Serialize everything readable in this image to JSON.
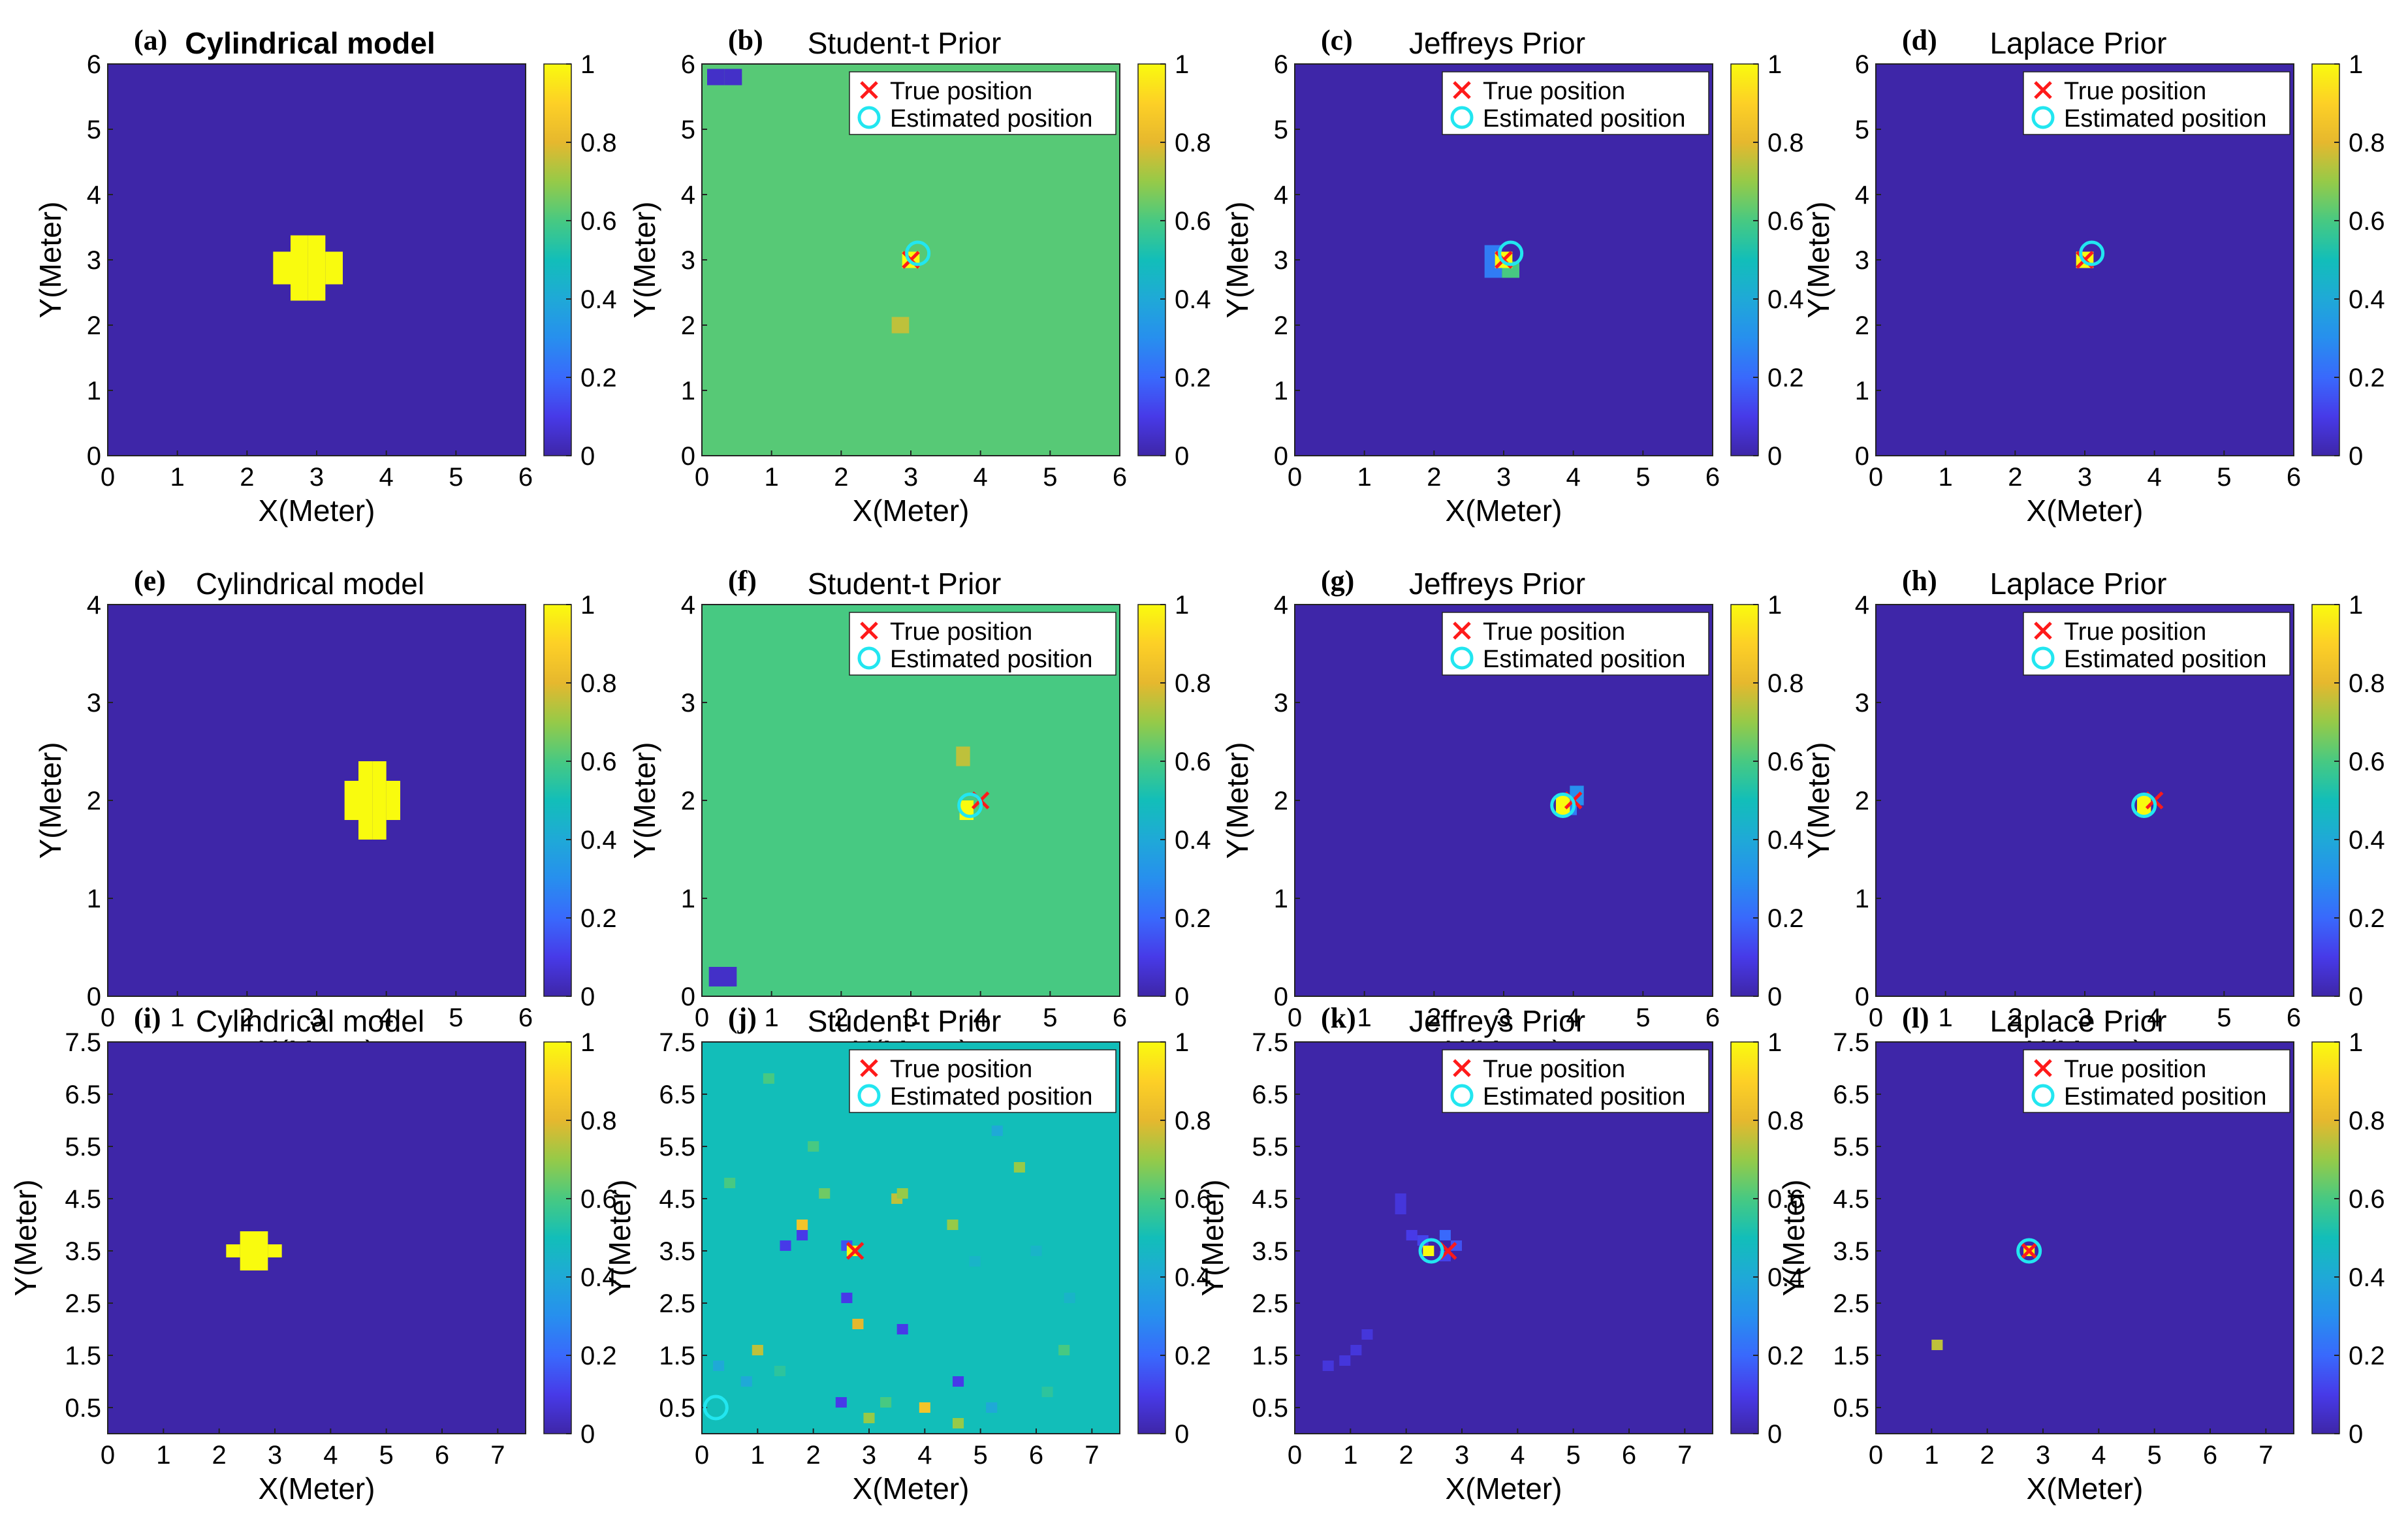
{
  "figure": {
    "axis_labels": {
      "x": "X(Meter)",
      "y": "Y(Meter)"
    },
    "legend_labels": {
      "true": "True position",
      "estimated": "Estimated position"
    },
    "colorbar_ticks": [
      "0",
      "0.2",
      "0.4",
      "0.6",
      "0.8",
      "1"
    ],
    "colors": {
      "background_dark": "#3d2fa3",
      "student_t_bg_b": "#2b85f2",
      "student_t_bg_f": "#2a91e8",
      "student_t_bg_j": "#14b8b0",
      "target_yellow": "#f7f90f",
      "true_marker": "#ff1a1a",
      "estimated_marker": "#22e6f0"
    }
  },
  "chart_data": [
    {
      "id": "a",
      "letter": "(a)",
      "type": "heatmap",
      "title": "Cylindrical model",
      "title_bold": true,
      "xlim": [
        0,
        6
      ],
      "ylim": [
        0,
        6
      ],
      "xticks": [
        "0",
        "1",
        "2",
        "3",
        "4",
        "5",
        "6"
      ],
      "yticks": [
        "0",
        "1",
        "2",
        "3",
        "4",
        "5",
        "6"
      ],
      "background": 0,
      "cells_size": 0.25,
      "cells": [
        [
          2.75,
          2.5,
          1
        ],
        [
          3.0,
          2.5,
          1
        ],
        [
          2.5,
          2.75,
          1
        ],
        [
          2.75,
          2.75,
          1
        ],
        [
          3.0,
          2.75,
          1
        ],
        [
          3.25,
          2.75,
          1
        ],
        [
          2.5,
          3.0,
          1
        ],
        [
          2.75,
          3.0,
          1
        ],
        [
          3.0,
          3.0,
          1
        ],
        [
          3.25,
          3.0,
          1
        ],
        [
          2.75,
          3.25,
          1
        ],
        [
          3.0,
          3.25,
          1
        ]
      ],
      "true_position": null,
      "estimated_position": null,
      "legend": false
    },
    {
      "id": "b",
      "letter": "(b)",
      "type": "heatmap",
      "title": "Student-t Prior",
      "title_bold": false,
      "xlim": [
        0,
        6
      ],
      "ylim": [
        0,
        6
      ],
      "xticks": [
        "0",
        "1",
        "2",
        "3",
        "4",
        "5",
        "6"
      ],
      "yticks": [
        "0",
        "1",
        "2",
        "3",
        "4",
        "5",
        "6"
      ],
      "background": 0.62,
      "cells_size": 0.25,
      "cells": [
        [
          0.2,
          5.8,
          0.05
        ],
        [
          0.45,
          5.8,
          0.05
        ],
        [
          2.85,
          2.0,
          0.75
        ],
        [
          3.0,
          3.0,
          1
        ]
      ],
      "true_position": [
        3.0,
        3.0
      ],
      "estimated_position": [
        3.1,
        3.1
      ],
      "legend": true
    },
    {
      "id": "c",
      "letter": "(c)",
      "type": "heatmap",
      "title": "Jeffreys Prior",
      "title_bold": false,
      "xlim": [
        0,
        6
      ],
      "ylim": [
        0,
        6
      ],
      "xticks": [
        "0",
        "1",
        "2",
        "3",
        "4",
        "5",
        "6"
      ],
      "yticks": [
        "0",
        "1",
        "2",
        "3",
        "4",
        "5",
        "6"
      ],
      "background": 0,
      "cells_size": 0.25,
      "cells": [
        [
          2.85,
          2.85,
          0.25
        ],
        [
          3.1,
          2.85,
          0.6
        ],
        [
          2.85,
          3.1,
          0.25
        ],
        [
          3.0,
          3.0,
          1
        ]
      ],
      "true_position": [
        3.0,
        3.0
      ],
      "estimated_position": [
        3.1,
        3.1
      ],
      "legend": true
    },
    {
      "id": "d",
      "letter": "(d)",
      "type": "heatmap",
      "title": "Laplace Prior",
      "title_bold": false,
      "xlim": [
        0,
        6
      ],
      "ylim": [
        0,
        6
      ],
      "xticks": [
        "0",
        "1",
        "2",
        "3",
        "4",
        "5",
        "6"
      ],
      "yticks": [
        "0",
        "1",
        "2",
        "3",
        "4",
        "5",
        "6"
      ],
      "background": 0,
      "cells_size": 0.25,
      "cells": [
        [
          3.0,
          3.0,
          1
        ]
      ],
      "true_position": [
        3.0,
        3.0
      ],
      "estimated_position": [
        3.1,
        3.1
      ],
      "legend": true
    },
    {
      "id": "e",
      "letter": "(e)",
      "type": "heatmap",
      "title": "Cylindrical model",
      "title_bold": false,
      "xlim": [
        0,
        6
      ],
      "ylim": [
        0,
        4
      ],
      "xticks": [
        "0",
        "1",
        "2",
        "3",
        "4",
        "5",
        "6"
      ],
      "yticks": [
        "0",
        "1",
        "2",
        "3",
        "4"
      ],
      "background": 0,
      "cells_size": 0.2,
      "cells": [
        [
          3.7,
          1.7,
          1
        ],
        [
          3.9,
          1.7,
          1
        ],
        [
          3.5,
          1.9,
          1
        ],
        [
          3.7,
          1.9,
          1
        ],
        [
          3.9,
          1.9,
          1
        ],
        [
          4.1,
          1.9,
          1
        ],
        [
          3.5,
          2.1,
          1
        ],
        [
          3.7,
          2.1,
          1
        ],
        [
          3.9,
          2.1,
          1
        ],
        [
          4.1,
          2.1,
          1
        ],
        [
          3.7,
          2.3,
          1
        ],
        [
          3.9,
          2.3,
          1
        ]
      ],
      "true_position": null,
      "estimated_position": null,
      "legend": false
    },
    {
      "id": "f",
      "letter": "(f)",
      "type": "heatmap",
      "title": "Student-t Prior",
      "title_bold": false,
      "xlim": [
        0,
        6
      ],
      "ylim": [
        0,
        4
      ],
      "xticks": [
        "0",
        "1",
        "2",
        "3",
        "4",
        "5",
        "6"
      ],
      "yticks": [
        "0",
        "1",
        "2",
        "3",
        "4"
      ],
      "background": 0.6,
      "cells_size": 0.2,
      "cells": [
        [
          0.2,
          0.2,
          0.05
        ],
        [
          0.4,
          0.2,
          0.05
        ],
        [
          3.75,
          2.45,
          0.75
        ],
        [
          3.8,
          1.9,
          1
        ]
      ],
      "true_position": [
        4.0,
        2.0
      ],
      "estimated_position": [
        3.85,
        1.95
      ],
      "legend": true
    },
    {
      "id": "g",
      "letter": "(g)",
      "type": "heatmap",
      "title": "Jeffreys Prior",
      "title_bold": false,
      "xlim": [
        0,
        6
      ],
      "ylim": [
        0,
        4
      ],
      "xticks": [
        "0",
        "1",
        "2",
        "3",
        "4",
        "5",
        "6"
      ],
      "yticks": [
        "0",
        "1",
        "2",
        "3",
        "4"
      ],
      "background": 0,
      "cells_size": 0.2,
      "cells": [
        [
          3.95,
          1.95,
          0.25
        ],
        [
          4.05,
          2.05,
          0.3
        ],
        [
          3.85,
          1.95,
          1
        ]
      ],
      "true_position": [
        4.0,
        2.0
      ],
      "estimated_position": [
        3.85,
        1.95
      ],
      "legend": true
    },
    {
      "id": "h",
      "letter": "(h)",
      "type": "heatmap",
      "title": "Laplace Prior",
      "title_bold": false,
      "xlim": [
        0,
        6
      ],
      "ylim": [
        0,
        4
      ],
      "xticks": [
        "0",
        "1",
        "2",
        "3",
        "4",
        "5",
        "6"
      ],
      "yticks": [
        "0",
        "1",
        "2",
        "3",
        "4"
      ],
      "background": 0,
      "cells_size": 0.2,
      "cells": [
        [
          3.85,
          1.95,
          1
        ]
      ],
      "true_position": [
        4.0,
        2.0
      ],
      "estimated_position": [
        3.85,
        1.95
      ],
      "legend": true
    },
    {
      "id": "i",
      "letter": "(i)",
      "type": "heatmap",
      "title": "Cylindrical model",
      "title_bold": false,
      "xlim": [
        0,
        7.5
      ],
      "ylim": [
        0,
        7.5
      ],
      "xticks": [
        "0",
        "1",
        "2",
        "3",
        "4",
        "5",
        "6",
        "7"
      ],
      "yticks": [
        "0.5",
        "1.5",
        "2.5",
        "3.5",
        "4.5",
        "5.5",
        "6.5",
        "7.5"
      ],
      "background": 0,
      "cells_size": 0.25,
      "cells": [
        [
          2.5,
          3.25,
          1
        ],
        [
          2.75,
          3.25,
          1
        ],
        [
          2.25,
          3.5,
          1
        ],
        [
          2.5,
          3.5,
          1
        ],
        [
          2.75,
          3.5,
          1
        ],
        [
          3.0,
          3.5,
          1
        ],
        [
          2.5,
          3.75,
          1
        ],
        [
          2.75,
          3.75,
          1
        ]
      ],
      "true_position": null,
      "estimated_position": null,
      "legend": false
    },
    {
      "id": "j",
      "letter": "(j)",
      "type": "heatmap",
      "title": "Student-t Prior",
      "title_bold": false,
      "xlim": [
        0,
        7.5
      ],
      "ylim": [
        0,
        7.5
      ],
      "xticks": [
        "0",
        "1",
        "2",
        "3",
        "4",
        "5",
        "6",
        "7"
      ],
      "yticks": [
        "0.5",
        "1.5",
        "2.5",
        "3.5",
        "4.5",
        "5.5",
        "6.5",
        "7.5"
      ],
      "background": 0.5,
      "cells_size": 0.2,
      "cells": [
        [
          1.8,
          3.8,
          0.1
        ],
        [
          2.6,
          3.6,
          0.15
        ],
        [
          2.6,
          2.6,
          0.1
        ],
        [
          1.5,
          3.6,
          0.1
        ],
        [
          3.6,
          2.0,
          0.1
        ],
        [
          4.6,
          1.0,
          0.1
        ],
        [
          2.5,
          0.6,
          0.1
        ],
        [
          4.0,
          0.5,
          0.85
        ],
        [
          1.8,
          4.0,
          0.85
        ],
        [
          3.5,
          4.5,
          0.75
        ],
        [
          3.6,
          4.6,
          0.7
        ],
        [
          1.0,
          1.6,
          0.75
        ],
        [
          2.8,
          2.1,
          0.8
        ],
        [
          3.0,
          0.3,
          0.7
        ],
        [
          5.7,
          5.1,
          0.7
        ],
        [
          4.5,
          4.0,
          0.7
        ],
        [
          2.2,
          4.6,
          0.65
        ],
        [
          6.5,
          1.6,
          0.6
        ],
        [
          6.0,
          3.5,
          0.45
        ],
        [
          4.6,
          0.2,
          0.7
        ],
        [
          0.8,
          1.0,
          0.4
        ],
        [
          5.2,
          0.5,
          0.4
        ],
        [
          3.3,
          0.6,
          0.6
        ],
        [
          1.4,
          1.2,
          0.55
        ],
        [
          2.0,
          5.5,
          0.6
        ],
        [
          6.2,
          0.8,
          0.55
        ],
        [
          0.3,
          1.3,
          0.4
        ],
        [
          6.6,
          2.6,
          0.45
        ],
        [
          4.9,
          3.3,
          0.45
        ],
        [
          0.5,
          4.8,
          0.6
        ],
        [
          3.2,
          6.6,
          0.4
        ],
        [
          1.2,
          6.8,
          0.6
        ],
        [
          5.3,
          5.8,
          0.4
        ],
        [
          2.7,
          3.5,
          1
        ]
      ],
      "true_position": [
        2.75,
        3.5
      ],
      "estimated_position": [
        0.25,
        0.5
      ],
      "legend": true
    },
    {
      "id": "k",
      "letter": "(k)",
      "type": "heatmap",
      "title": "Jeffreys Prior",
      "title_bold": false,
      "xlim": [
        0,
        7.5
      ],
      "ylim": [
        0,
        7.5
      ],
      "xticks": [
        "0",
        "1",
        "2",
        "3",
        "4",
        "5",
        "6",
        "7"
      ],
      "yticks": [
        "0.5",
        "1.5",
        "2.5",
        "3.5",
        "4.5",
        "5.5",
        "6.5",
        "7.5"
      ],
      "background": 0,
      "cells_size": 0.2,
      "cells": [
        [
          1.9,
          4.5,
          0.08
        ],
        [
          1.9,
          4.3,
          0.08
        ],
        [
          2.1,
          3.8,
          0.1
        ],
        [
          2.3,
          3.7,
          0.12
        ],
        [
          2.7,
          3.8,
          0.2
        ],
        [
          2.9,
          3.6,
          0.15
        ],
        [
          2.7,
          3.4,
          0.12
        ],
        [
          1.3,
          1.9,
          0.08
        ],
        [
          1.1,
          1.6,
          0.08
        ],
        [
          0.9,
          1.4,
          0.08
        ],
        [
          0.6,
          1.3,
          0.08
        ],
        [
          2.4,
          3.5,
          1
        ]
      ],
      "true_position": [
        2.75,
        3.5
      ],
      "estimated_position": [
        2.45,
        3.5
      ],
      "legend": true
    },
    {
      "id": "l",
      "letter": "(l)",
      "type": "heatmap",
      "title": "Laplace Prior",
      "title_bold": false,
      "xlim": [
        0,
        7.5
      ],
      "ylim": [
        0,
        7.5
      ],
      "xticks": [
        "0",
        "1",
        "2",
        "3",
        "4",
        "5",
        "6",
        "7"
      ],
      "yticks": [
        "0.5",
        "1.5",
        "2.5",
        "3.5",
        "4.5",
        "5.5",
        "6.5",
        "7.5"
      ],
      "background": 0,
      "cells_size": 0.2,
      "cells": [
        [
          1.1,
          1.7,
          0.75
        ],
        [
          2.75,
          3.5,
          1
        ]
      ],
      "true_position": [
        2.75,
        3.5
      ],
      "estimated_position": [
        2.75,
        3.5
      ],
      "legend": true
    }
  ]
}
